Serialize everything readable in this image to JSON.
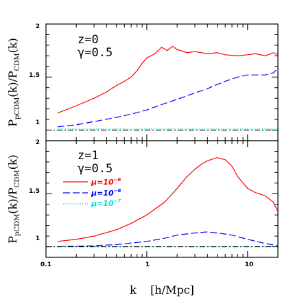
{
  "chart_data": {
    "type": "line",
    "xlabel": "k    [h/Mpc]",
    "xscale": "log",
    "xlim": [
      0.1,
      20
    ],
    "x_tick_labels": [
      "0.1",
      "1",
      "10"
    ],
    "panels": [
      {
        "id": "top",
        "ylabel_main": "P",
        "ylabel_main_sub": "pCDM",
        "ylabel_mid": "(k)/P",
        "ylabel_mid_sub": "CDM",
        "ylabel_end": "(k)",
        "ylim": [
          0.9,
          2.0
        ],
        "y_tick_labels": [
          "1",
          "1.5",
          "2"
        ],
        "annotation": [
          "z=0",
          "γ=0.5"
        ],
        "series": [
          {
            "color": "#ff0000",
            "dash": "solid",
            "x": [
              0.13,
              0.2,
              0.3,
              0.4,
              0.5,
              0.6,
              0.7,
              0.8,
              0.9,
              1.0,
              1.2,
              1.4,
              1.6,
              1.8,
              2.0,
              2.5,
              3,
              4,
              5,
              6,
              8,
              10,
              12,
              15,
              18,
              20
            ],
            "y": [
              1.16,
              1.23,
              1.3,
              1.36,
              1.42,
              1.46,
              1.5,
              1.56,
              1.63,
              1.68,
              1.72,
              1.78,
              1.75,
              1.79,
              1.76,
              1.73,
              1.74,
              1.72,
              1.73,
              1.71,
              1.7,
              1.71,
              1.72,
              1.7,
              1.73,
              1.71
            ]
          },
          {
            "color": "#0000ff",
            "dash": "long",
            "x": [
              0.13,
              0.2,
              0.3,
              0.5,
              0.7,
              1.0,
              1.5,
              2,
              3,
              4,
              5,
              6,
              8,
              10,
              12,
              15,
              18,
              20
            ],
            "y": [
              1.03,
              1.05,
              1.08,
              1.12,
              1.15,
              1.19,
              1.25,
              1.29,
              1.35,
              1.39,
              1.43,
              1.46,
              1.5,
              1.52,
              1.52,
              1.52,
              1.54,
              1.58
            ]
          },
          {
            "color": "#00e0e0",
            "dash": "dotted",
            "x": [
              0.13,
              1,
              10,
              20
            ],
            "y": [
              1.01,
              1.01,
              1.01,
              1.01
            ]
          },
          {
            "color": "#000000",
            "dash": "dashdot",
            "x": [
              0.1,
              20
            ],
            "y": [
              1.0,
              1.0
            ]
          }
        ]
      },
      {
        "id": "bottom",
        "ylabel_main": "P",
        "ylabel_main_sub": "pCDM",
        "ylabel_mid": "(k)/P",
        "ylabel_mid_sub": "CDM",
        "ylabel_end": "(k)",
        "ylim": [
          0.9,
          2.0
        ],
        "y_tick_labels": [
          "1",
          "1.5",
          "2"
        ],
        "annotation": [
          "z=1",
          "γ=0.5"
        ],
        "legend": [
          {
            "label_base": "μ=10",
            "label_exp": "−6",
            "color": "#ff0000",
            "dash": "solid"
          },
          {
            "label_base": "μ=10",
            "label_exp": "−6",
            "color": "#0000ff",
            "dash": "long"
          },
          {
            "label_base": "μ=10",
            "label_exp": "−7",
            "color": "#00e0e0",
            "dash": "dotted"
          }
        ],
        "series": [
          {
            "color": "#ff0000",
            "dash": "solid",
            "x": [
              0.13,
              0.2,
              0.3,
              0.5,
              0.7,
              1.0,
              1.5,
              2,
              2.5,
              3,
              3.5,
              4,
              5,
              6,
              7,
              8,
              10,
              12,
              15,
              18,
              20
            ],
            "y": [
              1.05,
              1.07,
              1.1,
              1.16,
              1.22,
              1.3,
              1.42,
              1.55,
              1.66,
              1.73,
              1.78,
              1.81,
              1.84,
              1.82,
              1.76,
              1.66,
              1.55,
              1.51,
              1.48,
              1.42,
              1.33
            ]
          },
          {
            "color": "#0000ff",
            "dash": "long",
            "x": [
              0.13,
              0.3,
              0.5,
              1.0,
              1.5,
              2,
              3,
              4,
              5,
              7,
              10,
              15,
              20
            ],
            "y": [
              1.0,
              1.01,
              1.02,
              1.05,
              1.08,
              1.11,
              1.13,
              1.14,
              1.13,
              1.11,
              1.07,
              1.03,
              1.01
            ]
          },
          {
            "color": "#00e0e0",
            "dash": "dotted",
            "x": [
              0.13,
              1,
              10,
              20
            ],
            "y": [
              1.0,
              1.0,
              1.0,
              1.0
            ]
          },
          {
            "color": "#000000",
            "dash": "dashdot",
            "x": [
              0.1,
              20
            ],
            "y": [
              1.0,
              1.0
            ]
          }
        ]
      }
    ]
  }
}
